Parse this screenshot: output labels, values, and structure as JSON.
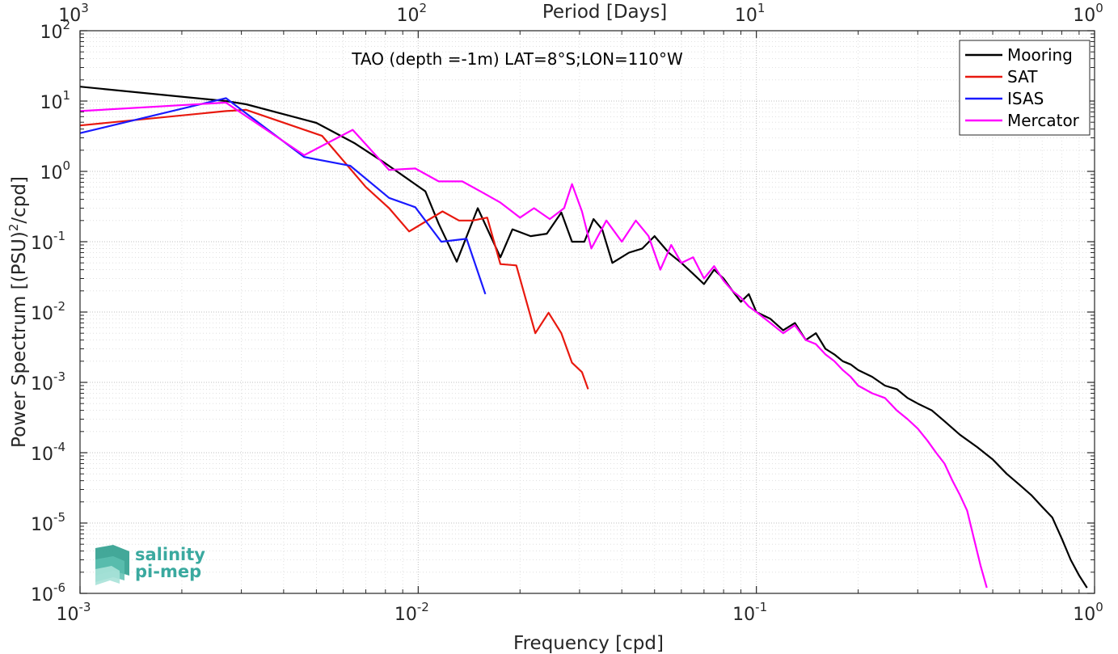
{
  "chart_data": {
    "type": "line",
    "title": "TAO (depth =-1m) LAT=8°S;LON=110°W",
    "xlabel": "Frequency [cpd]",
    "ylabel": "Power Spectrum [(PSU)²/cpd]",
    "ylabel_parts": {
      "main": "Power Spectrum [(PSU)",
      "sup": "2",
      "tail": "/cpd]"
    },
    "top_xlabel": "Period [Days]",
    "xscale": "log",
    "yscale": "log",
    "xlim": [
      0.001,
      1
    ],
    "ylim": [
      1e-06,
      100
    ],
    "grid": true,
    "legend_position": "top-right",
    "x_ticks": [
      {
        "value": 0.001,
        "base": "10",
        "exp": "-3"
      },
      {
        "value": 0.01,
        "base": "10",
        "exp": "-2"
      },
      {
        "value": 0.1,
        "base": "10",
        "exp": "-1"
      },
      {
        "value": 1,
        "base": "10",
        "exp": "0"
      }
    ],
    "top_x_ticks": [
      {
        "base": "10",
        "exp": "3"
      },
      {
        "base": "10",
        "exp": "2"
      },
      {
        "base": "10",
        "exp": "1"
      },
      {
        "base": "10",
        "exp": "0"
      }
    ],
    "y_ticks": [
      {
        "value": 100,
        "base": "10",
        "exp": "2"
      },
      {
        "value": 10,
        "base": "10",
        "exp": "1"
      },
      {
        "value": 1,
        "base": "10",
        "exp": "0"
      },
      {
        "value": 0.1,
        "base": "10",
        "exp": "-1"
      },
      {
        "value": 0.01,
        "base": "10",
        "exp": "-2"
      },
      {
        "value": 0.001,
        "base": "10",
        "exp": "-3"
      },
      {
        "value": 0.0001,
        "base": "10",
        "exp": "-4"
      },
      {
        "value": 1e-05,
        "base": "10",
        "exp": "-5"
      },
      {
        "value": 1e-06,
        "base": "10",
        "exp": "-6"
      }
    ],
    "series": [
      {
        "name": "Mooring",
        "color": "#000000",
        "points": [
          [
            0.001,
            16
          ],
          [
            0.0027,
            10
          ],
          [
            0.0031,
            9
          ],
          [
            0.005,
            4.9
          ],
          [
            0.0065,
            2.5
          ],
          [
            0.008,
            1.3
          ],
          [
            0.0105,
            0.52
          ],
          [
            0.0115,
            0.18
          ],
          [
            0.013,
            0.052
          ],
          [
            0.015,
            0.3
          ],
          [
            0.0175,
            0.06
          ],
          [
            0.019,
            0.15
          ],
          [
            0.0215,
            0.12
          ],
          [
            0.024,
            0.13
          ],
          [
            0.0265,
            0.26
          ],
          [
            0.0285,
            0.1
          ],
          [
            0.031,
            0.1
          ],
          [
            0.033,
            0.21
          ],
          [
            0.035,
            0.15
          ],
          [
            0.0375,
            0.05
          ],
          [
            0.042,
            0.07
          ],
          [
            0.046,
            0.08
          ],
          [
            0.05,
            0.12
          ],
          [
            0.055,
            0.07
          ],
          [
            0.06,
            0.05
          ],
          [
            0.065,
            0.035
          ],
          [
            0.07,
            0.025
          ],
          [
            0.075,
            0.04
          ],
          [
            0.08,
            0.03
          ],
          [
            0.085,
            0.02
          ],
          [
            0.09,
            0.014
          ],
          [
            0.095,
            0.018
          ],
          [
            0.1,
            0.01
          ],
          [
            0.11,
            0.008
          ],
          [
            0.12,
            0.0055
          ],
          [
            0.13,
            0.007
          ],
          [
            0.14,
            0.004
          ],
          [
            0.15,
            0.005
          ],
          [
            0.16,
            0.003
          ],
          [
            0.17,
            0.0025
          ],
          [
            0.18,
            0.002
          ],
          [
            0.19,
            0.0018
          ],
          [
            0.2,
            0.0015
          ],
          [
            0.22,
            0.0012
          ],
          [
            0.24,
            0.0009
          ],
          [
            0.26,
            0.0008
          ],
          [
            0.28,
            0.0006
          ],
          [
            0.3,
            0.0005
          ],
          [
            0.33,
            0.0004
          ],
          [
            0.36,
            0.00028
          ],
          [
            0.4,
            0.00018
          ],
          [
            0.45,
            0.00012
          ],
          [
            0.5,
            8e-05
          ],
          [
            0.55,
            5e-05
          ],
          [
            0.6,
            3.5e-05
          ],
          [
            0.65,
            2.5e-05
          ],
          [
            0.7,
            1.7e-05
          ],
          [
            0.75,
            1.2e-05
          ],
          [
            0.8,
            6e-06
          ],
          [
            0.85,
            3e-06
          ],
          [
            0.9,
            1.8e-06
          ],
          [
            0.95,
            1.2e-06
          ]
        ]
      },
      {
        "name": "SAT",
        "color": "#e8190f",
        "points": [
          [
            0.001,
            4.5
          ],
          [
            0.0027,
            7.2
          ],
          [
            0.0031,
            7.5
          ],
          [
            0.0052,
            3.2
          ],
          [
            0.007,
            0.6
          ],
          [
            0.0082,
            0.3
          ],
          [
            0.0094,
            0.14
          ],
          [
            0.0118,
            0.27
          ],
          [
            0.0132,
            0.2
          ],
          [
            0.0145,
            0.2
          ],
          [
            0.016,
            0.22
          ],
          [
            0.0175,
            0.048
          ],
          [
            0.0195,
            0.046
          ],
          [
            0.0222,
            0.005
          ],
          [
            0.0243,
            0.0098
          ],
          [
            0.0265,
            0.005
          ],
          [
            0.0285,
            0.0019
          ],
          [
            0.0305,
            0.0014
          ],
          [
            0.0318,
            0.0008
          ]
        ]
      },
      {
        "name": "ISAS",
        "color": "#1a1aff",
        "points": [
          [
            0.001,
            3.5
          ],
          [
            0.0027,
            11
          ],
          [
            0.0046,
            1.6
          ],
          [
            0.0063,
            1.2
          ],
          [
            0.0082,
            0.42
          ],
          [
            0.0098,
            0.31
          ],
          [
            0.0117,
            0.1
          ],
          [
            0.0139,
            0.11
          ],
          [
            0.0158,
            0.018
          ]
        ]
      },
      {
        "name": "Mercator",
        "color": "#ff00ff",
        "points": [
          [
            0.001,
            7.2
          ],
          [
            0.0027,
            9.5
          ],
          [
            0.0046,
            1.7
          ],
          [
            0.0064,
            3.9
          ],
          [
            0.0082,
            1.05
          ],
          [
            0.0098,
            1.1
          ],
          [
            0.0115,
            0.72
          ],
          [
            0.0135,
            0.72
          ],
          [
            0.0155,
            0.5
          ],
          [
            0.0175,
            0.36
          ],
          [
            0.02,
            0.22
          ],
          [
            0.022,
            0.3
          ],
          [
            0.0245,
            0.21
          ],
          [
            0.027,
            0.3
          ],
          [
            0.0285,
            0.66
          ],
          [
            0.0305,
            0.27
          ],
          [
            0.0325,
            0.08
          ],
          [
            0.036,
            0.2
          ],
          [
            0.04,
            0.1
          ],
          [
            0.044,
            0.2
          ],
          [
            0.048,
            0.12
          ],
          [
            0.052,
            0.04
          ],
          [
            0.056,
            0.09
          ],
          [
            0.06,
            0.05
          ],
          [
            0.065,
            0.06
          ],
          [
            0.07,
            0.03
          ],
          [
            0.075,
            0.045
          ],
          [
            0.08,
            0.028
          ],
          [
            0.085,
            0.02
          ],
          [
            0.09,
            0.016
          ],
          [
            0.095,
            0.012
          ],
          [
            0.1,
            0.01
          ],
          [
            0.11,
            0.007
          ],
          [
            0.12,
            0.005
          ],
          [
            0.13,
            0.0065
          ],
          [
            0.14,
            0.004
          ],
          [
            0.15,
            0.0035
          ],
          [
            0.16,
            0.0025
          ],
          [
            0.17,
            0.002
          ],
          [
            0.18,
            0.0015
          ],
          [
            0.19,
            0.0012
          ],
          [
            0.2,
            0.0009
          ],
          [
            0.22,
            0.0007
          ],
          [
            0.24,
            0.0006
          ],
          [
            0.26,
            0.0004
          ],
          [
            0.28,
            0.0003
          ],
          [
            0.3,
            0.00022
          ],
          [
            0.32,
            0.00015
          ],
          [
            0.34,
            0.0001
          ],
          [
            0.36,
            7e-05
          ],
          [
            0.38,
            4e-05
          ],
          [
            0.4,
            2.5e-05
          ],
          [
            0.42,
            1.5e-05
          ],
          [
            0.44,
            6e-06
          ],
          [
            0.46,
            2.5e-06
          ],
          [
            0.48,
            1.2e-06
          ]
        ]
      }
    ]
  },
  "logo": {
    "line1": "salinity",
    "line2": "pi-mep"
  }
}
